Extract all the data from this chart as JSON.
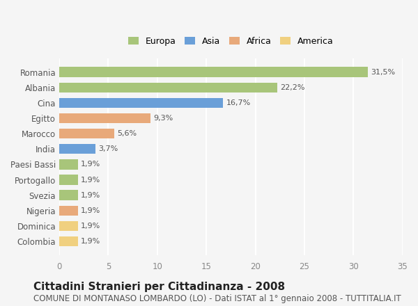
{
  "categories": [
    "Romania",
    "Albania",
    "Cina",
    "Egitto",
    "Marocco",
    "India",
    "Paesi Bassi",
    "Portogallo",
    "Svezia",
    "Nigeria",
    "Dominica",
    "Colombia"
  ],
  "values": [
    31.5,
    22.2,
    16.7,
    9.3,
    5.6,
    3.7,
    1.9,
    1.9,
    1.9,
    1.9,
    1.9,
    1.9
  ],
  "labels": [
    "31,5%",
    "22,2%",
    "16,7%",
    "9,3%",
    "5,6%",
    "3,7%",
    "1,9%",
    "1,9%",
    "1,9%",
    "1,9%",
    "1,9%",
    "1,9%"
  ],
  "bar_colors": [
    "#a8c57a",
    "#a8c57a",
    "#6a9fd8",
    "#e8a97a",
    "#e8a97a",
    "#6a9fd8",
    "#a8c57a",
    "#a8c57a",
    "#a8c57a",
    "#e8a97a",
    "#f0d080",
    "#f0d080"
  ],
  "legend_labels": [
    "Europa",
    "Asia",
    "Africa",
    "America"
  ],
  "legend_colors": [
    "#a8c57a",
    "#6a9fd8",
    "#e8a97a",
    "#f0d080"
  ],
  "xlim": [
    0,
    35
  ],
  "xticks": [
    0,
    5,
    10,
    15,
    20,
    25,
    30,
    35
  ],
  "title": "Cittadini Stranieri per Cittadinanza - 2008",
  "subtitle": "COMUNE DI MONTANASO LOMBARDO (LO) - Dati ISTAT al 1° gennaio 2008 - TUTTITALIA.IT",
  "bg_color": "#f5f5f5",
  "grid_color": "#ffffff",
  "bar_height": 0.65,
  "title_fontsize": 11,
  "subtitle_fontsize": 8.5,
  "label_fontsize": 8,
  "tick_fontsize": 8.5
}
